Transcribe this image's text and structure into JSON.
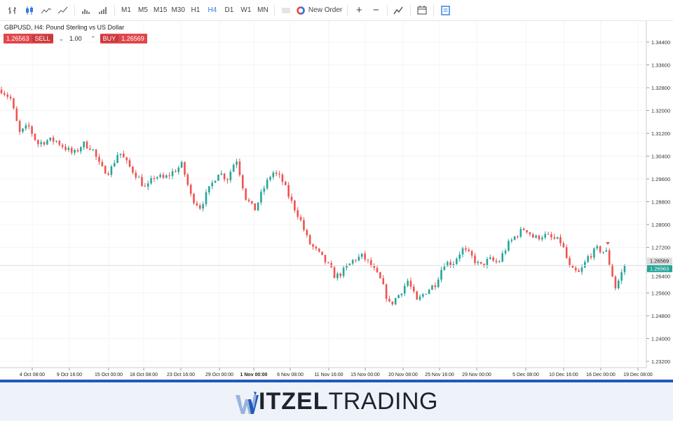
{
  "toolbar": {
    "icons": [
      "bar-chart-icon",
      "candlestick-icon",
      "line-chart-icon",
      "area-chart-icon",
      "volume-icon",
      "volume-bars-icon"
    ],
    "timeframes": [
      "M1",
      "M5",
      "M15",
      "M30",
      "H1",
      "H4",
      "D1",
      "W1",
      "MN"
    ],
    "active_timeframe": "H4",
    "new_order": "New Order",
    "zoom_in": "+",
    "zoom_out": "−"
  },
  "symbol": {
    "title": "GBPUSD, H4: Pound Sterling vs US Dollar"
  },
  "trade": {
    "sell_price": "1.26563",
    "sell_label": "SELL",
    "volume": "1.00",
    "buy_label": "BUY",
    "buy_price": "1.26569"
  },
  "colors": {
    "up": "#26a69a",
    "down": "#ef5350",
    "accent": "#2f7ae5",
    "brand_blue": "#1e5bbf"
  },
  "chart_data": {
    "type": "candlestick",
    "symbol": "GBPUSD",
    "timeframe": "H4",
    "ylim": [
      1.228,
      1.348
    ],
    "y_ticks": [
      "1.34400",
      "1.33600",
      "1.32800",
      "1.32000",
      "1.31200",
      "1.30400",
      "1.29600",
      "1.28800",
      "1.28000",
      "1.27200",
      "1.26400",
      "1.25600",
      "1.24800",
      "1.24000",
      "1.23200"
    ],
    "x_ticks": [
      "4 Oct 08:00",
      "9 Oct 16:00",
      "15 Oct 00:00",
      "18 Oct 08:00",
      "23 Oct 16:00",
      "29 Oct 00:00",
      "1 Nov 00:00",
      "6 Nov 08:00",
      "11 Nov 16:00",
      "15 Nov 00:00",
      "20 Nov 08:00",
      "25 Nov 16:00",
      "29 Nov 00:00",
      "5 Dec 08:00",
      "10 Dec 16:00",
      "16 Dec 00:00",
      "19 Dec 08:00"
    ],
    "close_path": [
      1.3273,
      1.3243,
      1.312,
      1.3145,
      1.3083,
      1.3095,
      1.3095,
      1.3071,
      1.3046,
      1.3083,
      1.3071,
      1.2997,
      1.2985,
      1.3058,
      1.3009,
      1.2972,
      1.2923,
      1.2972,
      1.296,
      1.2985,
      1.3009,
      1.2898,
      1.2862,
      1.2923,
      1.2985,
      1.296,
      1.3034,
      1.2898,
      1.2849,
      1.2923,
      1.2985,
      1.296,
      1.2886,
      1.2825,
      1.2738,
      1.2702,
      1.2665,
      1.2615,
      1.264,
      1.2677,
      1.2689,
      1.2652,
      1.2603,
      1.2517,
      1.2554,
      1.2603,
      1.2529,
      1.2566,
      1.2591,
      1.2665,
      1.2665,
      1.2714,
      1.2689,
      1.2652,
      1.2677,
      1.2665,
      1.2726,
      1.2763,
      1.2788,
      1.2751,
      1.2763,
      1.2751,
      1.2738,
      1.264,
      1.2628,
      1.2689,
      1.2714,
      1.2702,
      1.2578,
      1.2656
    ],
    "bid": "1.26563",
    "ask": "1.26569"
  },
  "footer": {
    "logo_bold": "WITZEL",
    "logo_light": "TRADING"
  }
}
